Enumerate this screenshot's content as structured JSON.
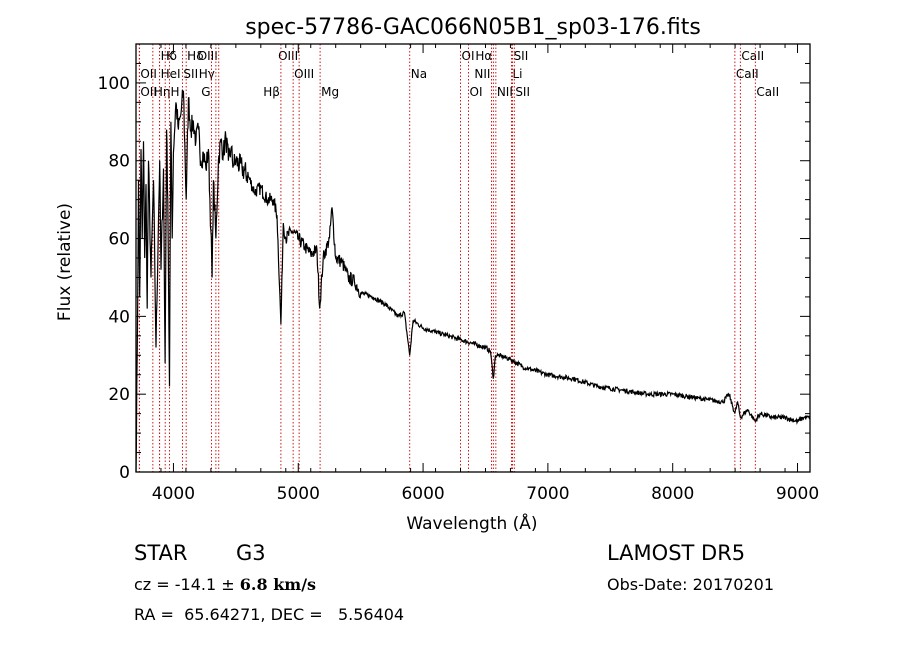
{
  "chart_data": {
    "type": "line",
    "title": "spec-57786-GAC066N05B1_sp03-176.fits",
    "xlabel": "Wavelength (Å)",
    "ylabel": "Flux (relative)",
    "xlim": [
      3700,
      9100
    ],
    "ylim": [
      0,
      110
    ],
    "xticks": [
      4000,
      5000,
      6000,
      7000,
      8000,
      9000
    ],
    "yticks": [
      0,
      20,
      40,
      60,
      80,
      100
    ],
    "grid": false,
    "series": [
      {
        "x": [
          3700,
          3710,
          3720,
          3730,
          3740,
          3750,
          3760,
          3770,
          3780,
          3790,
          3800,
          3820,
          3840,
          3860,
          3880,
          3890,
          3900,
          3920,
          3933,
          3945,
          3955,
          3968,
          3980,
          3990,
          4000,
          4020,
          4040,
          4060,
          4080,
          4102,
          4120,
          4140,
          4160,
          4180,
          4200,
          4220,
          4240,
          4260,
          4280,
          4300,
          4310,
          4320,
          4340,
          4360,
          4380,
          4400,
          4420,
          4440,
          4460,
          4480,
          4500,
          4550,
          4600,
          4650,
          4700,
          4750,
          4800,
          4830,
          4861,
          4880,
          4900,
          4950,
          5000,
          5050,
          5100,
          5150,
          5172,
          5200,
          5250,
          5270,
          5300,
          5350,
          5400,
          5450,
          5500,
          5600,
          5700,
          5800,
          5850,
          5893,
          5920,
          6000,
          6100,
          6200,
          6300,
          6400,
          6500,
          6540,
          6563,
          6580,
          6600,
          6700,
          6800,
          7000,
          7200,
          7400,
          7600,
          7800,
          8000,
          8200,
          8400,
          8450,
          8498,
          8520,
          8542,
          8600,
          8662,
          8700,
          8800,
          8900,
          9000,
          9050,
          9100
        ],
        "values": [
          0,
          30,
          75,
          45,
          83,
          60,
          85,
          55,
          74,
          42,
          80,
          50,
          75,
          32,
          65,
          80,
          52,
          78,
          28,
          88,
          70,
          22,
          90,
          60,
          82,
          95,
          88,
          92,
          98,
          70,
          96,
          88,
          90,
          85,
          88,
          80,
          82,
          78,
          83,
          62,
          50,
          75,
          60,
          80,
          85,
          82,
          86,
          80,
          83,
          79,
          80,
          78,
          76,
          72,
          73,
          70,
          70,
          66,
          38,
          64,
          60,
          62,
          60,
          58,
          56,
          57,
          42,
          55,
          60,
          68,
          55,
          54,
          50,
          49,
          46,
          45,
          43,
          40,
          41,
          30,
          39,
          37,
          36,
          35,
          34,
          33,
          32,
          31,
          24,
          30,
          30,
          29,
          27,
          25,
          24,
          22,
          21,
          20,
          20,
          19,
          18,
          20,
          15,
          18,
          14,
          16,
          13,
          15,
          14,
          14,
          13,
          14,
          14
        ]
      }
    ],
    "lines": [
      {
        "name": "Hδ",
        "wave": 3889,
        "row": 0,
        "align": "left"
      },
      {
        "name": "K",
        "wave": 3934,
        "row": 0,
        "align": "left"
      },
      {
        "name": "Hδ",
        "wave": 4102,
        "row": 0,
        "align": "left"
      },
      {
        "name": "OIII",
        "wave": 4363,
        "row": 0,
        "align": "right"
      },
      {
        "name": "OIII",
        "wave": 5007,
        "row": 0,
        "align": "right"
      },
      {
        "name": "OI",
        "wave": 6300,
        "row": 0,
        "align": "left"
      },
      {
        "name": "Hα",
        "wave": 6563,
        "row": 0,
        "align": "right"
      },
      {
        "name": "SII",
        "wave": 6717,
        "row": 0,
        "align": "left"
      },
      {
        "name": "CaII",
        "wave": 8542,
        "row": 0,
        "align": "left"
      },
      {
        "name": "OII",
        "wave": 3727,
        "row": 1,
        "align": "left"
      },
      {
        "name": "HeI",
        "wave": 3889,
        "row": 1,
        "align": "left"
      },
      {
        "name": "SII",
        "wave": 4072,
        "row": 1,
        "align": "left"
      },
      {
        "name": "Hγ",
        "wave": 4340,
        "row": 1,
        "align": "right"
      },
      {
        "name": "OIII",
        "wave": 4959,
        "row": 1,
        "align": "left"
      },
      {
        "name": "Na",
        "wave": 5893,
        "row": 1,
        "align": "left"
      },
      {
        "name": "NII",
        "wave": 6548,
        "row": 1,
        "align": "right"
      },
      {
        "name": "Li",
        "wave": 6708,
        "row": 1,
        "align": "left"
      },
      {
        "name": "CaII",
        "wave": 8498,
        "row": 1,
        "align": "left"
      },
      {
        "name": "OII",
        "wave": 3727,
        "row": 2,
        "align": "left"
      },
      {
        "name": "Hη",
        "wave": 3835,
        "row": 2,
        "align": "left"
      },
      {
        "name": "H",
        "wave": 3968,
        "row": 2,
        "align": "left"
      },
      {
        "name": "G",
        "wave": 4305,
        "row": 2,
        "align": "right"
      },
      {
        "name": "Hβ",
        "wave": 4861,
        "row": 2,
        "align": "right"
      },
      {
        "name": "Mg",
        "wave": 5175,
        "row": 2,
        "align": "left"
      },
      {
        "name": "OI",
        "wave": 6364,
        "row": 2,
        "align": "left"
      },
      {
        "name": "NII",
        "wave": 6583,
        "row": 2,
        "align": "left"
      },
      {
        "name": "SII",
        "wave": 6731,
        "row": 2,
        "align": "left"
      },
      {
        "name": "CaII",
        "wave": 8662,
        "row": 2,
        "align": "left"
      }
    ]
  },
  "info": {
    "object_class": "STAR",
    "subclass": "G3",
    "survey": "LAMOST DR5",
    "cz_label": "cz = ",
    "cz_value": "-14.1",
    "cz_pm": "±",
    "cz_error": "6.8 km/s",
    "obs_date": "Obs-Date: 20170201",
    "ra_dec": "RA =  65.64271, DEC =   5.56404"
  },
  "colors": {
    "spectrum": "#000000",
    "lines": "#cc0000",
    "axes": "#000000"
  }
}
